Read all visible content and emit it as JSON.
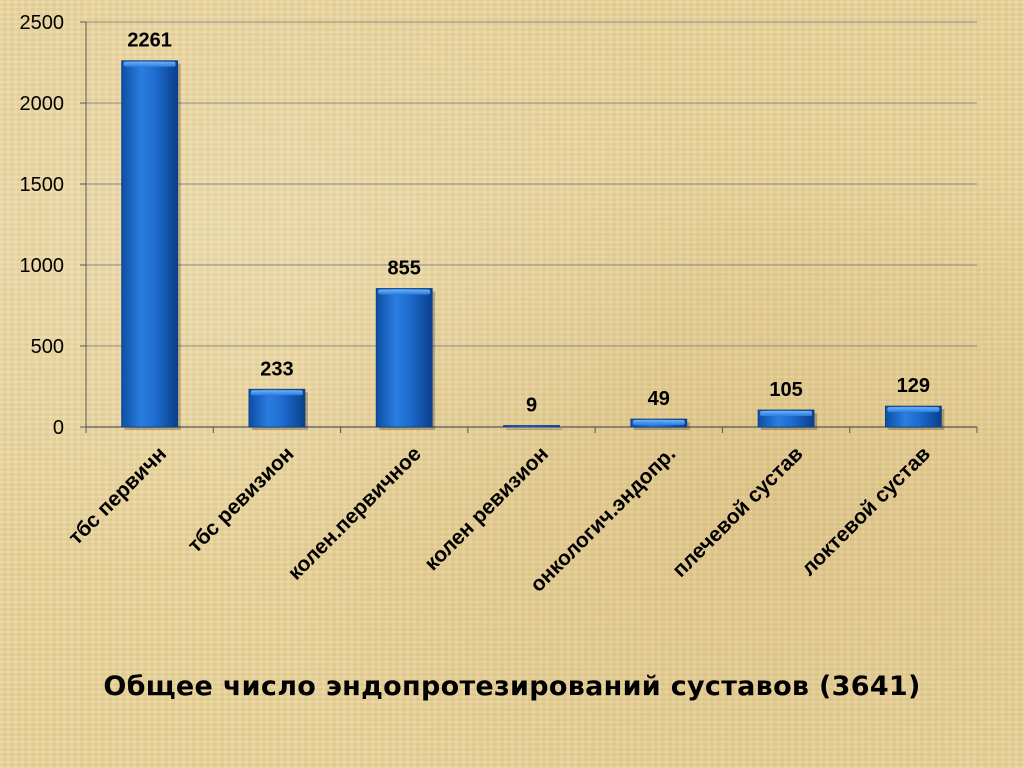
{
  "chart_data": {
    "type": "bar",
    "title": "Общее число эндопротезирований суставов (3641)",
    "categories": [
      "тбс первичн",
      "тбс ревизион",
      "колен.первичное",
      "колен ревизион",
      "онкологич.эндопр.",
      "плечевой сустав",
      "локтевой сустав"
    ],
    "values": [
      2261,
      233,
      855,
      9,
      49,
      105,
      129
    ],
    "data_labels": [
      "2261",
      "233",
      "855",
      "9",
      "49",
      "105",
      "129"
    ],
    "ylim": [
      0,
      2500
    ],
    "yticks": [
      0,
      500,
      1000,
      1500,
      2000,
      2500
    ],
    "grid": true,
    "legend": "none",
    "colors": {
      "bar": "#1565c8",
      "bar_light": "#4a95e8",
      "bar_dark": "#0a3f8a",
      "grid": "#8a8a8a"
    }
  }
}
